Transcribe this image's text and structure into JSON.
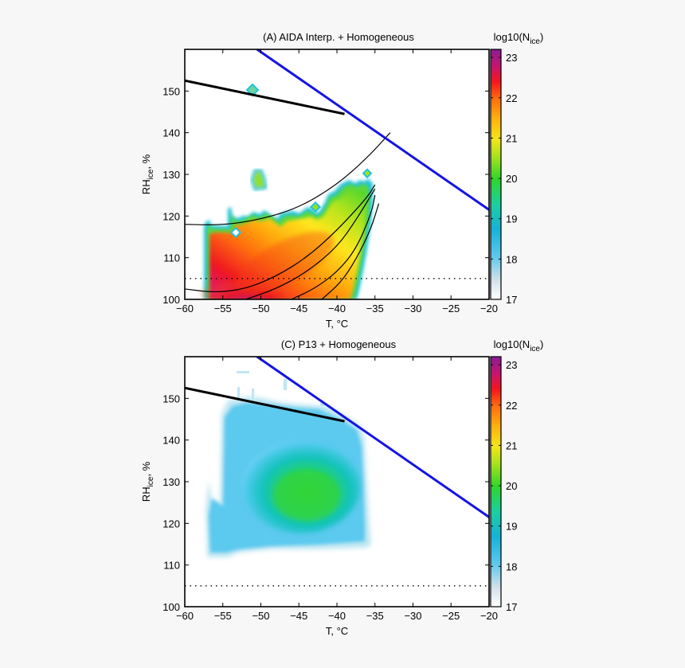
{
  "chart_data": [
    {
      "type": "heatmap",
      "title": "(A) AIDA Interp. + Homogeneous",
      "xlabel": "T, °C",
      "ylabel_main": "RH",
      "ylabel_sub": "ice",
      "ylabel_suffix": ", %",
      "xlim": [
        -60,
        -20
      ],
      "ylim": [
        100,
        160
      ],
      "xticks": [
        -60,
        -55,
        -50,
        -45,
        -40,
        -35,
        -30,
        -25,
        -20
      ],
      "yticks": [
        100,
        110,
        120,
        130,
        140,
        150
      ],
      "colorbar": {
        "label_main": "log10(N",
        "label_sub": "ice",
        "label_suffix": ")",
        "range": [
          17,
          23.2
        ],
        "ticks": [
          17,
          18,
          19,
          20,
          21,
          22,
          23
        ]
      },
      "lines": {
        "water_saturation": [
          [
            -50.5,
            160
          ],
          [
            -20,
            121.5
          ]
        ],
        "homogeneous_threshold": [
          [
            -60,
            152.5
          ],
          [
            -39,
            144.5
          ]
        ],
        "dotted_reference_rh": 105
      },
      "contour_curves": [
        [
          [
            -60,
            118
          ],
          [
            -55,
            117.8
          ],
          [
            -50,
            119.2
          ],
          [
            -45,
            122
          ],
          [
            -40,
            127.5
          ],
          [
            -36,
            134
          ],
          [
            -33,
            140
          ]
        ],
        [
          [
            -60,
            102.5
          ],
          [
            -56,
            101.6
          ],
          [
            -52,
            102.5
          ],
          [
            -48,
            105.5
          ],
          [
            -44,
            110
          ],
          [
            -40,
            116.5
          ],
          [
            -36,
            124.5
          ],
          [
            -35,
            127.5
          ]
        ],
        [
          [
            -52,
            100
          ],
          [
            -48,
            102.5
          ],
          [
            -44,
            106.5
          ],
          [
            -40,
            112.5
          ],
          [
            -37.5,
            119
          ],
          [
            -35,
            126.5
          ]
        ],
        [
          [
            -46,
            100
          ],
          [
            -43,
            102.5
          ],
          [
            -40,
            106.5
          ],
          [
            -37.5,
            112
          ],
          [
            -35.5,
            120.5
          ],
          [
            -35,
            125
          ]
        ],
        [
          [
            -42,
            100
          ],
          [
            -39.5,
            104
          ],
          [
            -37.5,
            109.5
          ],
          [
            -35.5,
            117
          ],
          [
            -34.5,
            123
          ]
        ]
      ]
    },
    {
      "type": "heatmap",
      "title": "(C) P13 + Homogeneous",
      "xlabel": "T, °C",
      "ylabel_main": "RH",
      "ylabel_sub": "ice",
      "ylabel_suffix": ", %",
      "xlim": [
        -60,
        -20
      ],
      "ylim": [
        100,
        160
      ],
      "xticks": [
        -60,
        -55,
        -50,
        -45,
        -40,
        -35,
        -30,
        -25,
        -20
      ],
      "yticks": [
        100,
        110,
        120,
        130,
        140,
        150
      ],
      "colorbar": {
        "label_main": "log10(N",
        "label_sub": "ice",
        "label_suffix": ")",
        "range": [
          17,
          23.2
        ],
        "ticks": [
          17,
          18,
          19,
          20,
          21,
          22,
          23
        ]
      },
      "lines": {
        "water_saturation": [
          [
            -50.5,
            160
          ],
          [
            -20,
            121.5
          ]
        ],
        "homogeneous_threshold": [
          [
            -60,
            152.5
          ],
          [
            -39,
            144.5
          ]
        ],
        "dotted_reference_rh": 105
      },
      "contour_curves": []
    }
  ]
}
